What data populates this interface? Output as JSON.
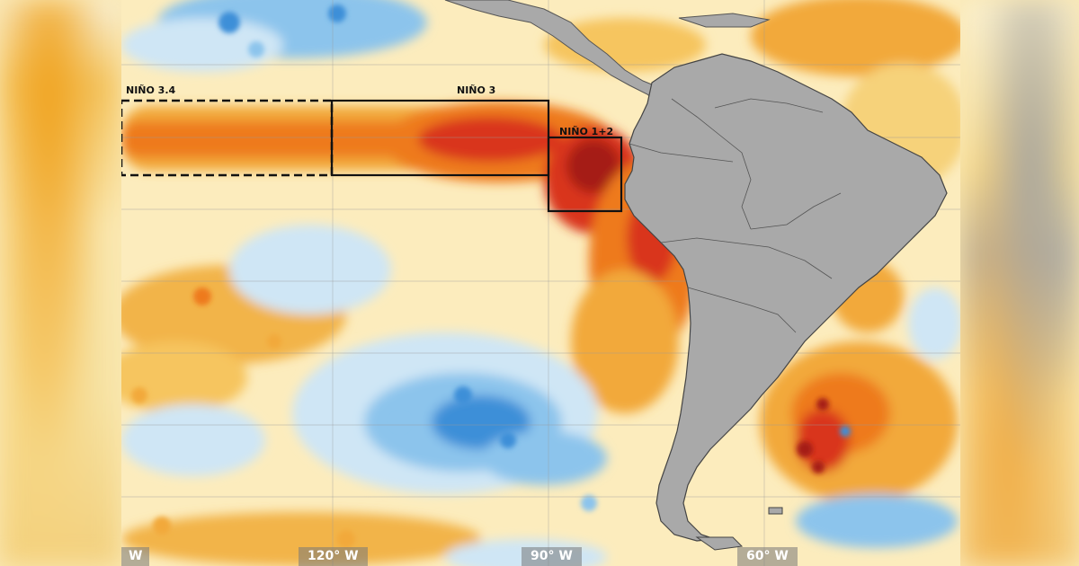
{
  "regions": {
    "nino34": {
      "label": "NIÑO 3.4"
    },
    "nino3": {
      "label": "NIÑO 3"
    },
    "nino12": {
      "label": "NIÑO 1+2"
    }
  },
  "longitude_labels": {
    "left_edge": "W",
    "lon120": "120° W",
    "lon90": "90° W",
    "lon60": "60° W"
  },
  "colors": {
    "warm_light": "#f6d27a",
    "warm_mid": "#f2a93a",
    "warm_orange": "#ee7a1e",
    "warm_red": "#d9361a",
    "warm_deep": "#a51a12",
    "cool_light": "#cfe6f5",
    "cool_mid": "#8cc4ec",
    "cool_deep": "#3e8fd8",
    "land": "#a9a9a9"
  }
}
